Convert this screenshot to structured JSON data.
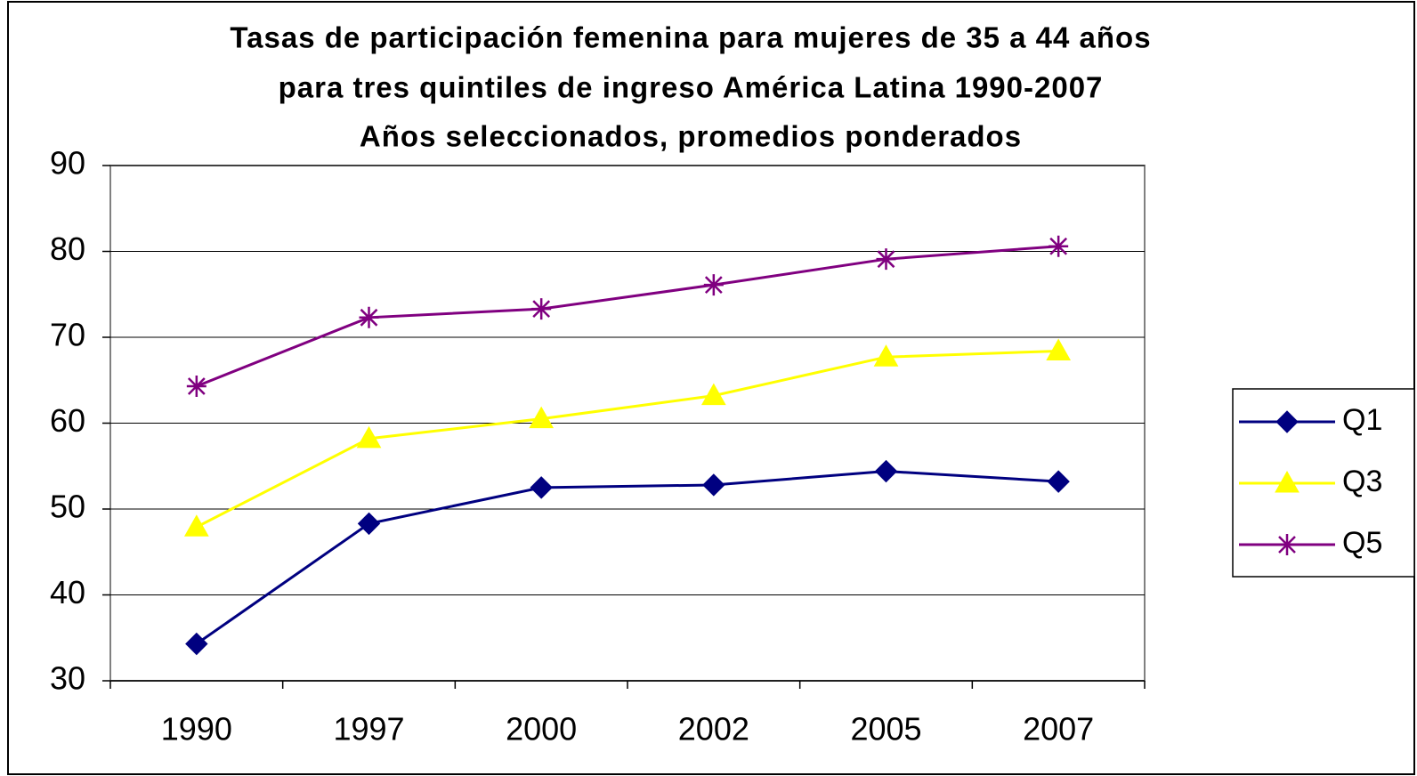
{
  "chart_data": {
    "type": "line",
    "title": [
      "Tasas de participación femenina para mujeres de 35 a 44 años",
      "para tres quintiles de ingreso  América Latina 1990-2007",
      "Años seleccionados, promedios ponderados"
    ],
    "categories": [
      "1990",
      "1997",
      "2000",
      "2002",
      "2005",
      "2007"
    ],
    "series": [
      {
        "name": "Q1",
        "color": "#000080",
        "marker": "diamond",
        "values": [
          34.3,
          48.3,
          52.5,
          52.8,
          54.4,
          53.2
        ]
      },
      {
        "name": "Q3",
        "color": "#ffff00",
        "marker": "triangle",
        "values": [
          47.9,
          58.2,
          60.5,
          63.2,
          67.7,
          68.4
        ]
      },
      {
        "name": "Q5",
        "color": "#800080",
        "marker": "asterisk",
        "values": [
          64.3,
          72.3,
          73.3,
          76.1,
          79.1,
          80.6
        ]
      }
    ],
    "ylim": [
      30,
      90
    ],
    "yticks": [
      30,
      40,
      50,
      60,
      70,
      80,
      90
    ],
    "grid": true,
    "legend": "right"
  }
}
